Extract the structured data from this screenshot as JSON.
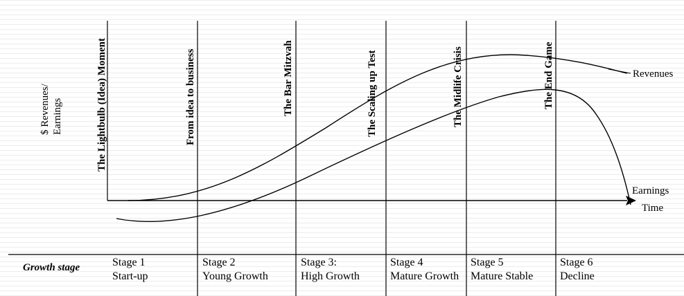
{
  "y_axis_label": [
    "$ Revenues/",
    "Earnings"
  ],
  "x_axis_label": "Time",
  "curves": [
    {
      "name": "Revenues"
    },
    {
      "name": "Earnings"
    }
  ],
  "milestones": [
    "The Lightbulb (Idea) Moment",
    "From idea to business",
    "The Bar Mitzvah",
    "The Scaling up Test",
    "The Midlife Crisis",
    "The End Game"
  ],
  "growth_stage_label": "Growth stage",
  "stages": [
    {
      "number": "Stage 1",
      "name": "Start-up"
    },
    {
      "number": "Stage 2",
      "name": "Young Growth"
    },
    {
      "number": "Stage 3:",
      "name": "High Growth"
    },
    {
      "number": "Stage 4",
      "name": "Mature Growth"
    },
    {
      "number": "Stage 5",
      "name": "Mature Stable"
    },
    {
      "number": "Stage 6",
      "name": "Decline"
    }
  ]
}
